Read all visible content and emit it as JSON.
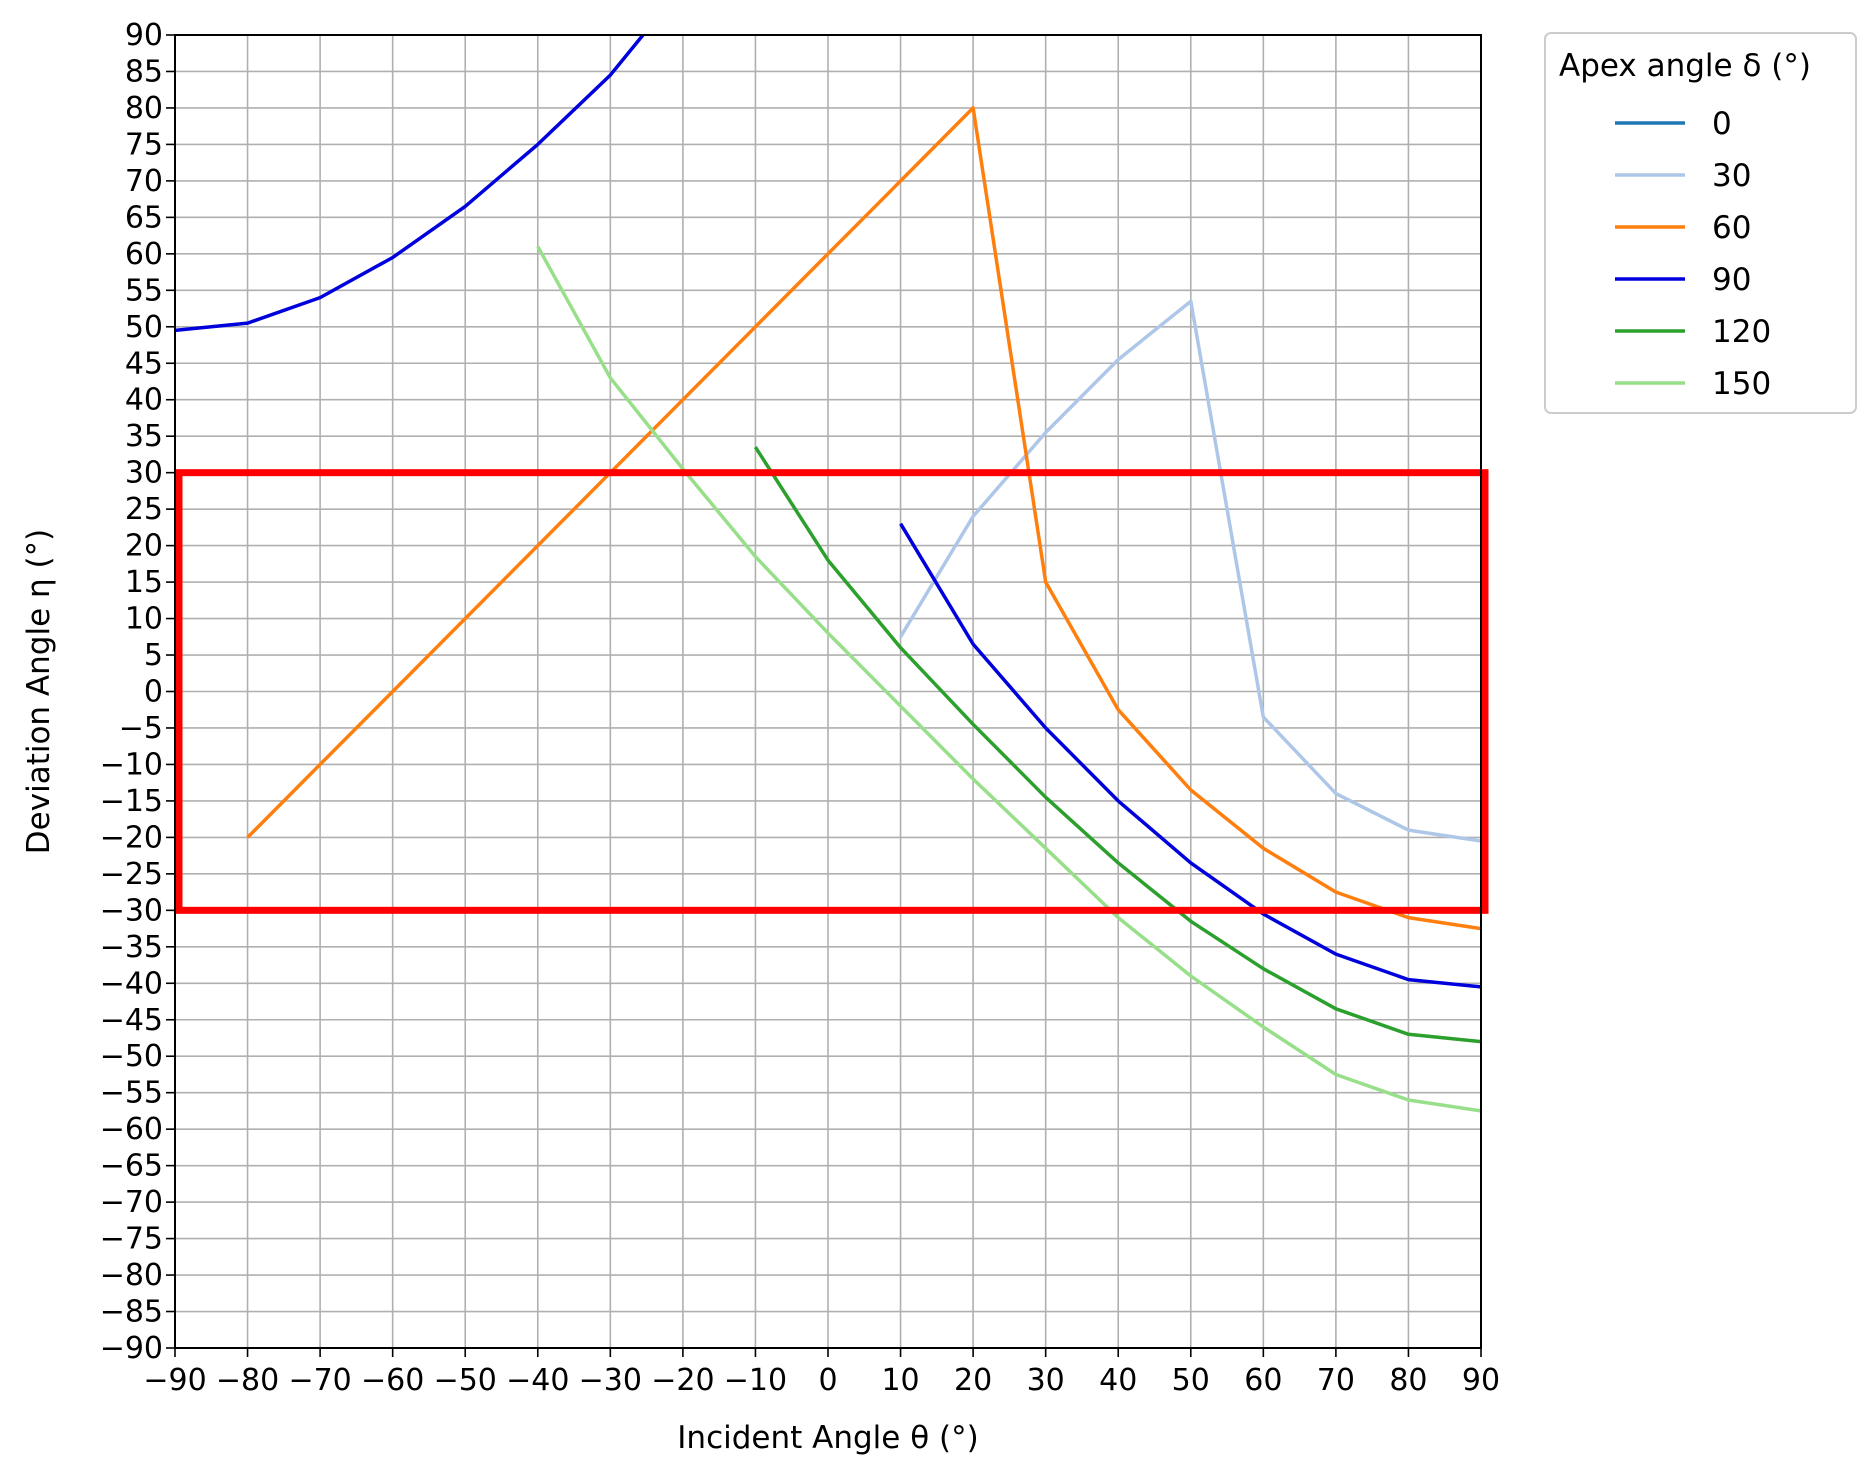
{
  "chart_data": {
    "type": "line",
    "xlabel": "Incident Angle θ (°)",
    "ylabel": "Deviation Angle η (°)",
    "xlim": [
      -90,
      90
    ],
    "ylim": [
      -90,
      90
    ],
    "x_ticks": [
      -90,
      -80,
      -70,
      -60,
      -50,
      -40,
      -30,
      -20,
      -10,
      0,
      10,
      20,
      30,
      40,
      50,
      60,
      70,
      80,
      90
    ],
    "y_ticks": [
      -90,
      -85,
      -80,
      -75,
      -70,
      -65,
      -60,
      -55,
      -50,
      -45,
      -40,
      -35,
      -30,
      -25,
      -20,
      -15,
      -10,
      -5,
      0,
      5,
      10,
      15,
      20,
      25,
      30,
      35,
      40,
      45,
      50,
      55,
      60,
      65,
      70,
      75,
      80,
      85,
      90
    ],
    "grid": true,
    "legend": {
      "title": "Apex angle δ (°)",
      "placement": "outside-top-right"
    },
    "series": [
      {
        "name": "0",
        "color": "#1f77b4",
        "x": [],
        "y": []
      },
      {
        "name": "30",
        "color": "#aec7e8",
        "x": [
          10,
          20,
          30,
          40,
          50,
          60,
          70,
          80,
          90
        ],
        "y": [
          7.5,
          24,
          35.5,
          45.5,
          53.5,
          -3.5,
          -14,
          -19,
          -20.5
        ]
      },
      {
        "name": "60",
        "color": "#ff7f0e",
        "x": [
          -80,
          -70,
          -60,
          -50,
          -40,
          -30,
          -20,
          -10,
          0,
          10,
          20,
          30,
          40,
          50,
          60,
          70,
          80,
          90
        ],
        "y": [
          -20,
          -10,
          0,
          10,
          20,
          30,
          40,
          50,
          60,
          70,
          80,
          15,
          -2.5,
          -13.5,
          -21.5,
          -27.5,
          -31,
          -32.5
        ]
      },
      {
        "name": "90",
        "color": "#0000dd",
        "x": [
          -90,
          -80,
          -70,
          -60,
          -50,
          -40,
          -30,
          -25.5,
          10,
          20,
          30,
          40,
          50,
          60,
          70,
          80,
          90
        ],
        "y": [
          49.5,
          50.5,
          54,
          59.5,
          66.5,
          75,
          84.5,
          90,
          23,
          6.5,
          -5,
          -15,
          -23.5,
          -30.5,
          -36,
          -39.5,
          -40.5
        ],
        "segments": [
          [
            0,
            7
          ],
          [
            8,
            16
          ]
        ]
      },
      {
        "name": "120",
        "color": "#2ca02c",
        "x": [
          -10,
          0,
          10,
          20,
          30,
          40,
          50,
          60,
          70,
          80,
          90
        ],
        "y": [
          33.5,
          18,
          6,
          -4.5,
          -14.5,
          -23.5,
          -31.5,
          -38,
          -43.5,
          -47,
          -48
        ]
      },
      {
        "name": "150",
        "color": "#98df8a",
        "x": [
          -40,
          -30,
          -20,
          -10,
          0,
          10,
          20,
          30,
          40,
          50,
          60,
          70,
          80,
          90
        ],
        "y": [
          61,
          43,
          30.5,
          18.5,
          8,
          -2,
          -12,
          -21.5,
          -31,
          -39,
          -46,
          -52.5,
          -56,
          -57.5
        ]
      }
    ],
    "annotations": [
      {
        "type": "rectangle",
        "color": "#ff0000",
        "x_range": [
          -90,
          90
        ],
        "y_range": [
          -30,
          30
        ]
      }
    ]
  }
}
